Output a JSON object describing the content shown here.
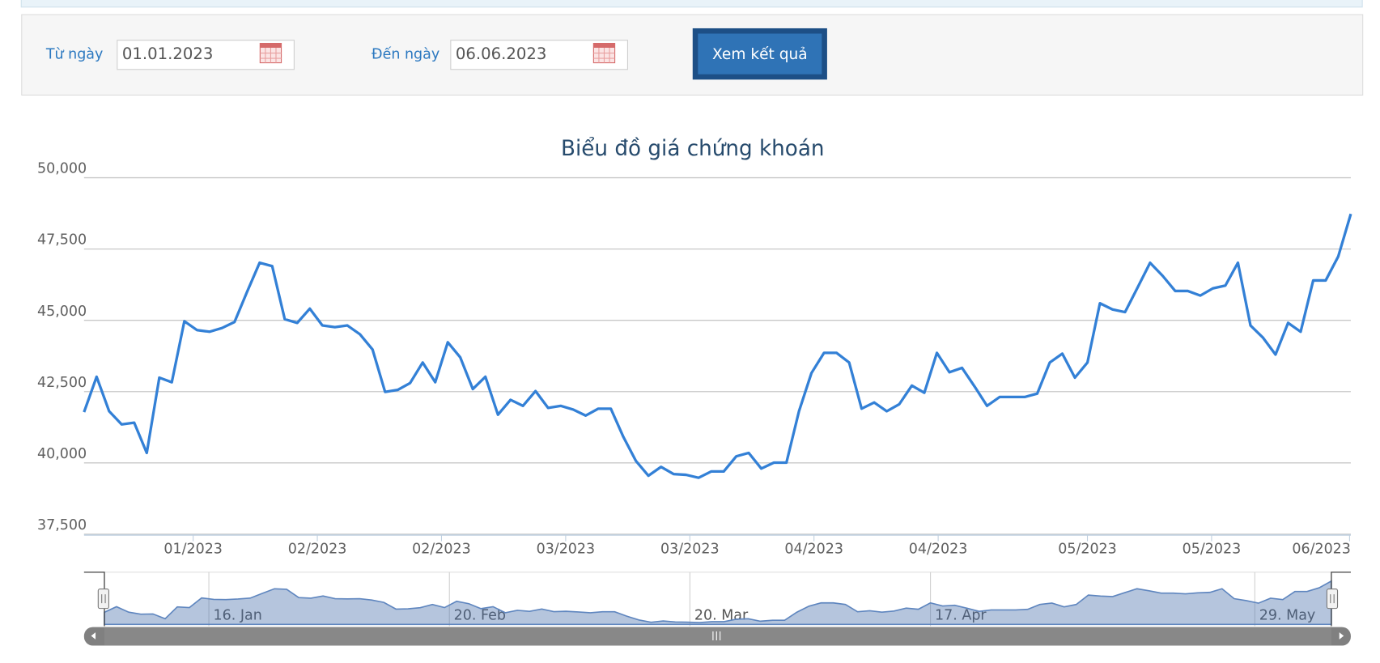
{
  "form": {
    "from_label": "Từ ngày",
    "from_value": "01.01.2023",
    "to_label": "Đến ngày",
    "to_value": "06.06.2023",
    "button": "Xem kết quả"
  },
  "chart_data": {
    "type": "line",
    "title": "Biểu đồ giá chứng khoán",
    "color": "#3380d6",
    "grid": true,
    "values": [
      41780,
      43020,
      41810,
      41350,
      41410,
      40350,
      42990,
      42830,
      44970,
      44660,
      44600,
      44730,
      44940,
      46000,
      47020,
      46900,
      45040,
      44910,
      45410,
      44820,
      44760,
      44820,
      44510,
      43980,
      42490,
      42560,
      42800,
      43520,
      42830,
      44230,
      43700,
      42590,
      43020,
      41690,
      42210,
      42000,
      42520,
      41930,
      42000,
      41870,
      41660,
      41900,
      41900,
      40910,
      40070,
      39550,
      39860,
      39610,
      39580,
      39480,
      39700,
      39700,
      40230,
      40350,
      39800,
      40010,
      40010,
      41810,
      43150,
      43860,
      43860,
      43520,
      41900,
      42120,
      41810,
      42060,
      42710,
      42460,
      43860,
      43180,
      43330,
      42680,
      42000,
      42310,
      42310,
      42310,
      42430,
      43520,
      43830,
      42990,
      43520,
      45600,
      45380,
      45290,
      46150,
      47020,
      46560,
      46030,
      46030,
      45870,
      46120,
      46220,
      47020,
      44820,
      44390,
      43800,
      44910,
      44600,
      46400,
      46400,
      47240,
      48730
    ],
    "xlim": [
      0,
      101
    ],
    "xticks": [
      {
        "value": 8.7,
        "label": "01/2023"
      },
      {
        "value": 18.6,
        "label": "02/2023"
      },
      {
        "value": 28.5,
        "label": "02/2023"
      },
      {
        "value": 38.4,
        "label": "03/2023"
      },
      {
        "value": 48.3,
        "label": "03/2023"
      },
      {
        "value": 58.2,
        "label": "04/2023"
      },
      {
        "value": 68.1,
        "label": "04/2023"
      },
      {
        "value": 80,
        "label": "05/2023"
      },
      {
        "value": 89.9,
        "label": "05/2023"
      },
      {
        "value": 100.9,
        "label": "06/2023"
      }
    ],
    "ylim": [
      37500,
      50000
    ],
    "yticks": [
      {
        "value": 37500,
        "label": "37,500"
      },
      {
        "value": 40000,
        "label": "40,000"
      },
      {
        "value": 42500,
        "label": "42,500"
      },
      {
        "value": 45000,
        "label": "45,000"
      },
      {
        "value": 47500,
        "label": "47,500"
      },
      {
        "value": 50000,
        "label": "50,000"
      }
    ],
    "navigator_xticks": [
      {
        "value": 8.6,
        "label": "16. Jan"
      },
      {
        "value": 28.4,
        "label": "20. Feb"
      },
      {
        "value": 48.2,
        "label": "20. Mar"
      },
      {
        "value": 68,
        "label": "17. Apr"
      },
      {
        "value": 94.7,
        "label": "29. May"
      }
    ]
  }
}
